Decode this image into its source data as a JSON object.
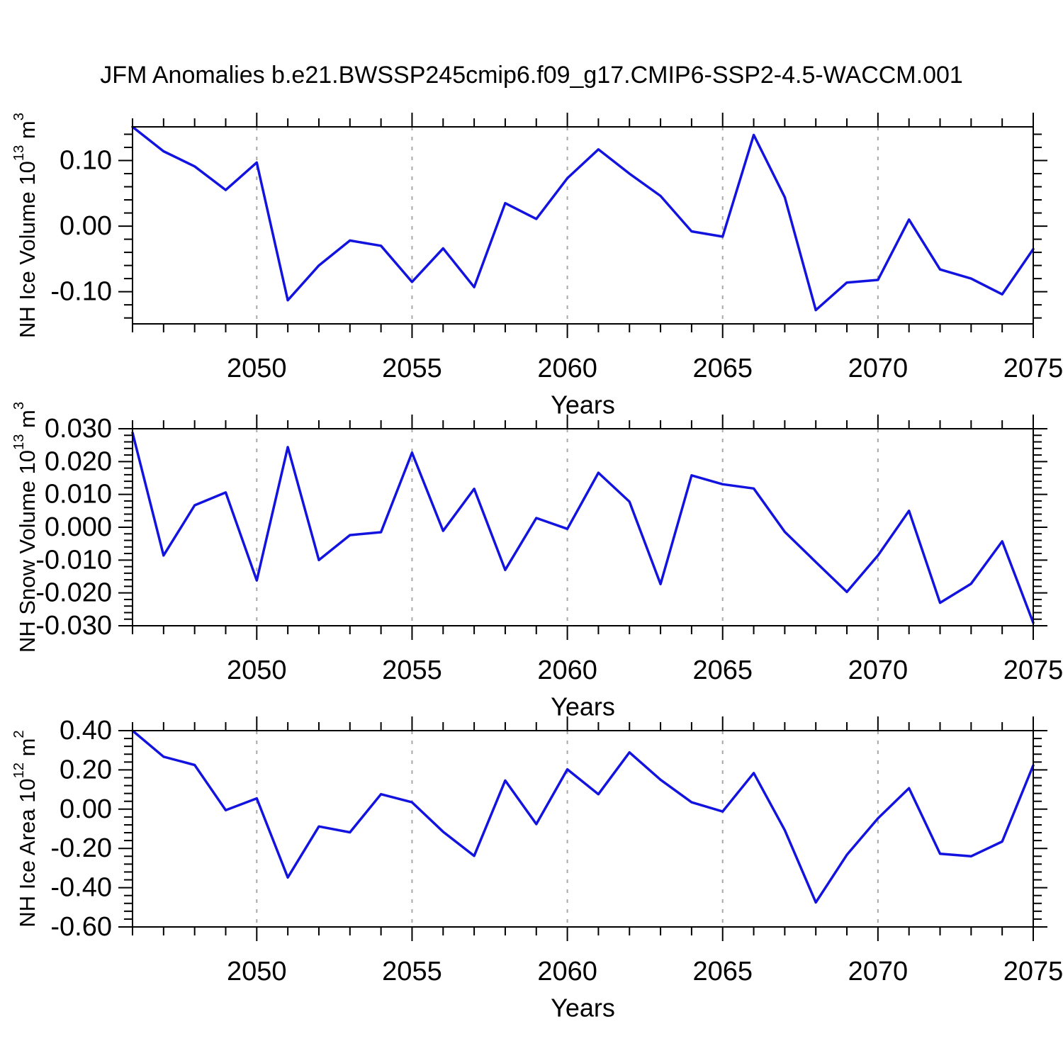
{
  "title": "JFM Anomalies b.e21.BWSSP245cmip6.f09_g17.CMIP6-SSP2-4.5-WACCM.001",
  "colors": {
    "line": "#1313e0",
    "axis": "#000000",
    "grid": "#a8a8a8",
    "background": "#ffffff"
  },
  "chart_data": [
    {
      "type": "line",
      "name": "nh-ice-volume",
      "ylabel": "NH Ice Volume 10^{13} m^{3}",
      "xlabel": "Years",
      "x": [
        2046,
        2047,
        2048,
        2049,
        2050,
        2051,
        2052,
        2053,
        2054,
        2055,
        2056,
        2057,
        2058,
        2059,
        2060,
        2061,
        2062,
        2063,
        2064,
        2065,
        2066,
        2067,
        2068,
        2069,
        2070,
        2071,
        2072,
        2073,
        2074,
        2075
      ],
      "values": [
        0.1513,
        0.114,
        0.091,
        0.055,
        0.097,
        -0.113,
        -0.06,
        -0.022,
        -0.03,
        -0.085,
        -0.034,
        -0.093,
        0.035,
        0.011,
        0.073,
        0.117,
        0.08,
        0.046,
        -0.008,
        -0.016,
        0.139,
        0.044,
        -0.128,
        -0.086,
        -0.082,
        0.01,
        -0.066,
        -0.08,
        -0.104,
        -0.035
      ],
      "xlim": [
        2046,
        2075
      ],
      "ylim": [
        -0.149,
        0.1513
      ],
      "yticks": {
        "major": [
          0.1,
          0.0,
          -0.1
        ],
        "labels": [
          "0.10",
          "0.00",
          "-0.10"
        ],
        "minor_step": 0.02
      },
      "xticks": {
        "major": [
          2050,
          2055,
          2060,
          2065,
          2070,
          2075
        ],
        "labels": [
          "2050",
          "2055",
          "2060",
          "2065",
          "2070",
          "2075"
        ],
        "minor_step": 1
      },
      "grid_years": [
        2050,
        2055,
        2060,
        2065,
        2070
      ],
      "grid": "vertical-dashed",
      "legend": null
    },
    {
      "type": "line",
      "name": "nh-snow-volume",
      "ylabel": "NH Snow Volume 10^{13} m^{3}",
      "xlabel": "Years",
      "x": [
        2046,
        2047,
        2048,
        2049,
        2050,
        2051,
        2052,
        2053,
        2054,
        2055,
        2056,
        2057,
        2058,
        2059,
        2060,
        2061,
        2062,
        2063,
        2064,
        2065,
        2066,
        2067,
        2068,
        2069,
        2070,
        2071,
        2072,
        2073,
        2074,
        2075
      ],
      "values": [
        0.0288,
        -0.0086,
        0.0067,
        0.0106,
        -0.0162,
        0.0244,
        -0.01,
        -0.0024,
        -0.0015,
        0.0227,
        -0.0011,
        0.0117,
        -0.013,
        0.0028,
        -0.0005,
        0.0166,
        0.0078,
        -0.0173,
        0.0158,
        0.0131,
        0.0118,
        -0.0014,
        -0.0106,
        -0.0197,
        -0.0086,
        0.005,
        -0.023,
        -0.0172,
        -0.0043,
        -0.0291
      ],
      "xlim": [
        2046,
        2075
      ],
      "ylim": [
        -0.03,
        0.03
      ],
      "yticks": {
        "major": [
          0.03,
          0.02,
          0.01,
          0.0,
          -0.01,
          -0.02,
          -0.03
        ],
        "labels": [
          "0.030",
          "0.020",
          "0.010",
          "0.000",
          "-0.010",
          "-0.020",
          "-0.030"
        ],
        "minor_step": 0.002
      },
      "xticks": {
        "major": [
          2050,
          2055,
          2060,
          2065,
          2070,
          2075
        ],
        "labels": [
          "2050",
          "2055",
          "2060",
          "2065",
          "2070",
          "2075"
        ],
        "minor_step": 1
      },
      "grid_years": [
        2050,
        2055,
        2060,
        2065,
        2070
      ],
      "grid": "vertical-dashed",
      "legend": null
    },
    {
      "type": "line",
      "name": "nh-ice-area",
      "ylabel": "NH Ice Area 10^{12} m^{2}",
      "xlabel": "Years",
      "x": [
        2046,
        2047,
        2048,
        2049,
        2050,
        2051,
        2052,
        2053,
        2054,
        2055,
        2056,
        2057,
        2058,
        2059,
        2060,
        2061,
        2062,
        2063,
        2064,
        2065,
        2066,
        2067,
        2068,
        2069,
        2070,
        2071,
        2072,
        2073,
        2074,
        2075
      ],
      "values": [
        0.4,
        0.267,
        0.225,
        -0.005,
        0.055,
        -0.348,
        -0.088,
        -0.118,
        0.076,
        0.035,
        -0.115,
        -0.238,
        0.146,
        -0.076,
        0.203,
        0.076,
        0.289,
        0.15,
        0.035,
        -0.012,
        0.184,
        -0.107,
        -0.475,
        -0.233,
        -0.047,
        0.107,
        -0.227,
        -0.24,
        -0.165,
        0.223
      ],
      "xlim": [
        2046,
        2075
      ],
      "ylim": [
        -0.6,
        0.4
      ],
      "yticks": {
        "major": [
          0.4,
          0.2,
          0.0,
          -0.2,
          -0.4,
          -0.6
        ],
        "labels": [
          "0.40",
          "0.20",
          "0.00",
          "-0.20",
          "-0.40",
          "-0.60"
        ],
        "minor_step": 0.04
      },
      "xticks": {
        "major": [
          2050,
          2055,
          2060,
          2065,
          2070,
          2075
        ],
        "labels": [
          "2050",
          "2055",
          "2060",
          "2065",
          "2070",
          "2075"
        ],
        "minor_step": 1
      },
      "grid_years": [
        2050,
        2055,
        2060,
        2065,
        2070
      ],
      "grid": "vertical-dashed",
      "legend": null
    }
  ]
}
